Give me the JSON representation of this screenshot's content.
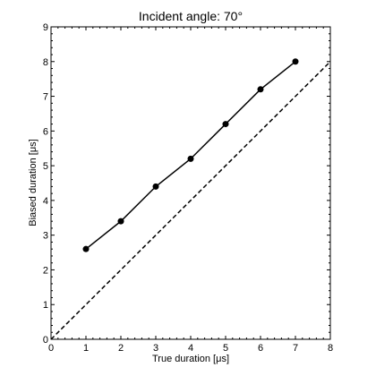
{
  "chart_data": {
    "type": "line",
    "title": "Incident angle: 70°",
    "xlabel": "True duration [μs]",
    "ylabel": "Biased duration [μs]",
    "xlim": [
      0,
      8
    ],
    "ylim": [
      0,
      9
    ],
    "xticks": [
      0,
      1,
      2,
      3,
      4,
      5,
      6,
      7,
      8
    ],
    "yticks": [
      0,
      1,
      2,
      3,
      4,
      5,
      6,
      7,
      8,
      9
    ],
    "grid": false,
    "series": [
      {
        "style": "solid-with-markers",
        "color": "#000000",
        "x": [
          1,
          2,
          3,
          4,
          5,
          6,
          7
        ],
        "y": [
          2.6,
          3.4,
          4.4,
          5.2,
          6.2,
          7.2,
          8.0
        ]
      },
      {
        "style": "dashed",
        "color": "#000000",
        "x": [
          0,
          8
        ],
        "y": [
          0,
          8
        ]
      }
    ]
  }
}
